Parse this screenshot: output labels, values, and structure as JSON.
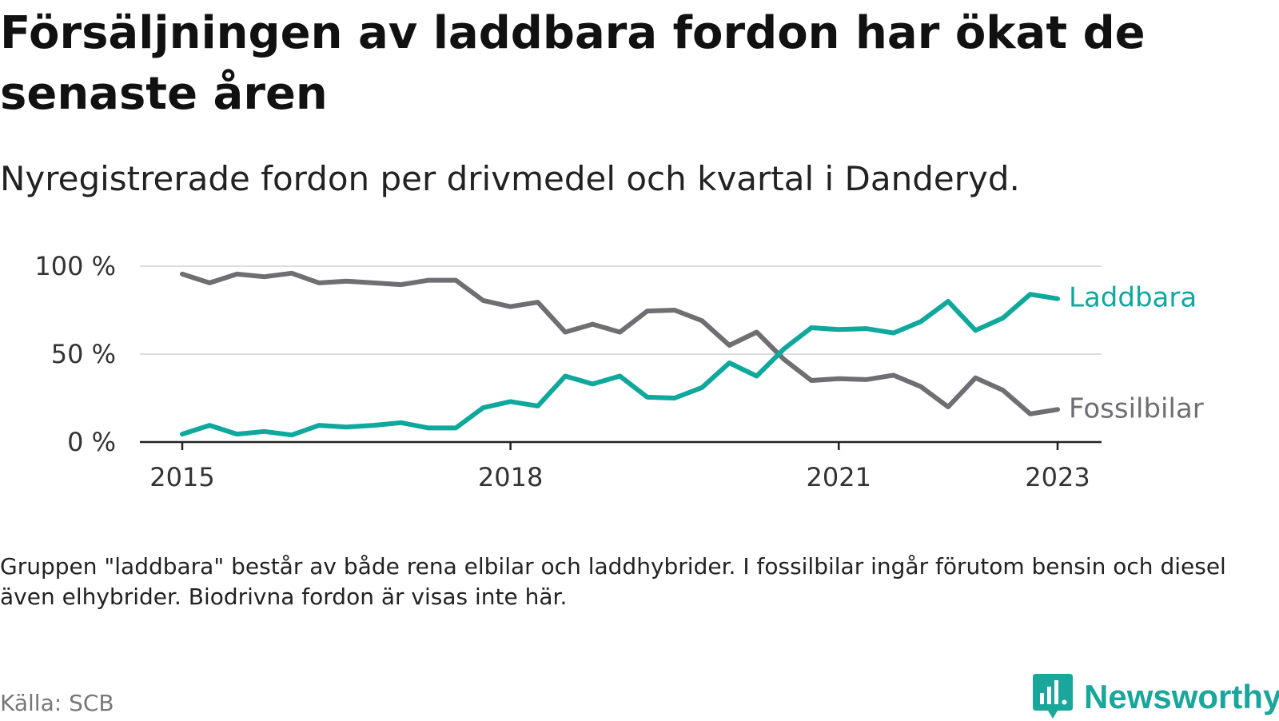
{
  "title": "Försäljningen av laddbara fordon har ökat de senaste åren",
  "subtitle": "Nyregistrerade fordon per drivmedel och kvartal i Danderyd.",
  "note": "Gruppen \"laddbara\" består av både rena elbilar och laddhybrider. I fossilbilar ingår förutom bensin och diesel även elhybrider. Biodrivna fordon är visas inte här.",
  "source": "Källa: SCB",
  "brand": {
    "name": "Newsworthy",
    "logo_icon": "chart-bubble-icon",
    "color": "#1aa69b"
  },
  "colors": {
    "laddbara": "#0fa89c",
    "fossilbilar": "#6e6e73",
    "grid": "#dddddd",
    "axis": "#222222"
  },
  "chart_data": {
    "type": "line",
    "title": "Nyregistrerade fordon per drivmedel och kvartal i Danderyd.",
    "xlabel": "",
    "ylabel": "",
    "x_unit": "quarter",
    "x_start": "2015 Q1",
    "xlim": [
      2015.0,
      2023.0
    ],
    "ylim": [
      0,
      100
    ],
    "y_ticks": [
      {
        "value": 0,
        "label": "0 %"
      },
      {
        "value": 50,
        "label": "50 %"
      },
      {
        "value": 100,
        "label": "100 %"
      }
    ],
    "x_ticks": [
      {
        "value": 2015,
        "label": "2015"
      },
      {
        "value": 2018,
        "label": "2018"
      },
      {
        "value": 2021,
        "label": "2021"
      },
      {
        "value": 2023,
        "label": "2023"
      }
    ],
    "grid": true,
    "legend": "direct labels at line ends",
    "series": [
      {
        "name": "Laddbara",
        "color": "#0fa89c",
        "values": [
          4.5,
          9.5,
          4.5,
          6.0,
          4.0,
          9.5,
          8.5,
          9.5,
          11.0,
          8.0,
          8.0,
          19.5,
          23.0,
          20.5,
          37.5,
          33.0,
          37.5,
          25.5,
          25.0,
          31.0,
          45.0,
          37.5,
          53.0,
          65.0,
          64.0,
          64.5,
          62.0,
          68.5,
          80.0,
          63.5,
          70.5,
          84.0,
          81.5
        ]
      },
      {
        "name": "Fossilbilar",
        "color": "#6e6e73",
        "values": [
          95.5,
          90.5,
          95.5,
          94.0,
          96.0,
          90.5,
          91.5,
          90.5,
          89.5,
          92.0,
          92.0,
          80.5,
          77.0,
          79.5,
          62.5,
          67.0,
          62.5,
          74.5,
          75.0,
          69.0,
          55.0,
          62.5,
          47.0,
          35.0,
          36.0,
          35.5,
          38.0,
          31.5,
          20.0,
          36.5,
          29.5,
          16.0,
          18.5
        ]
      }
    ]
  }
}
